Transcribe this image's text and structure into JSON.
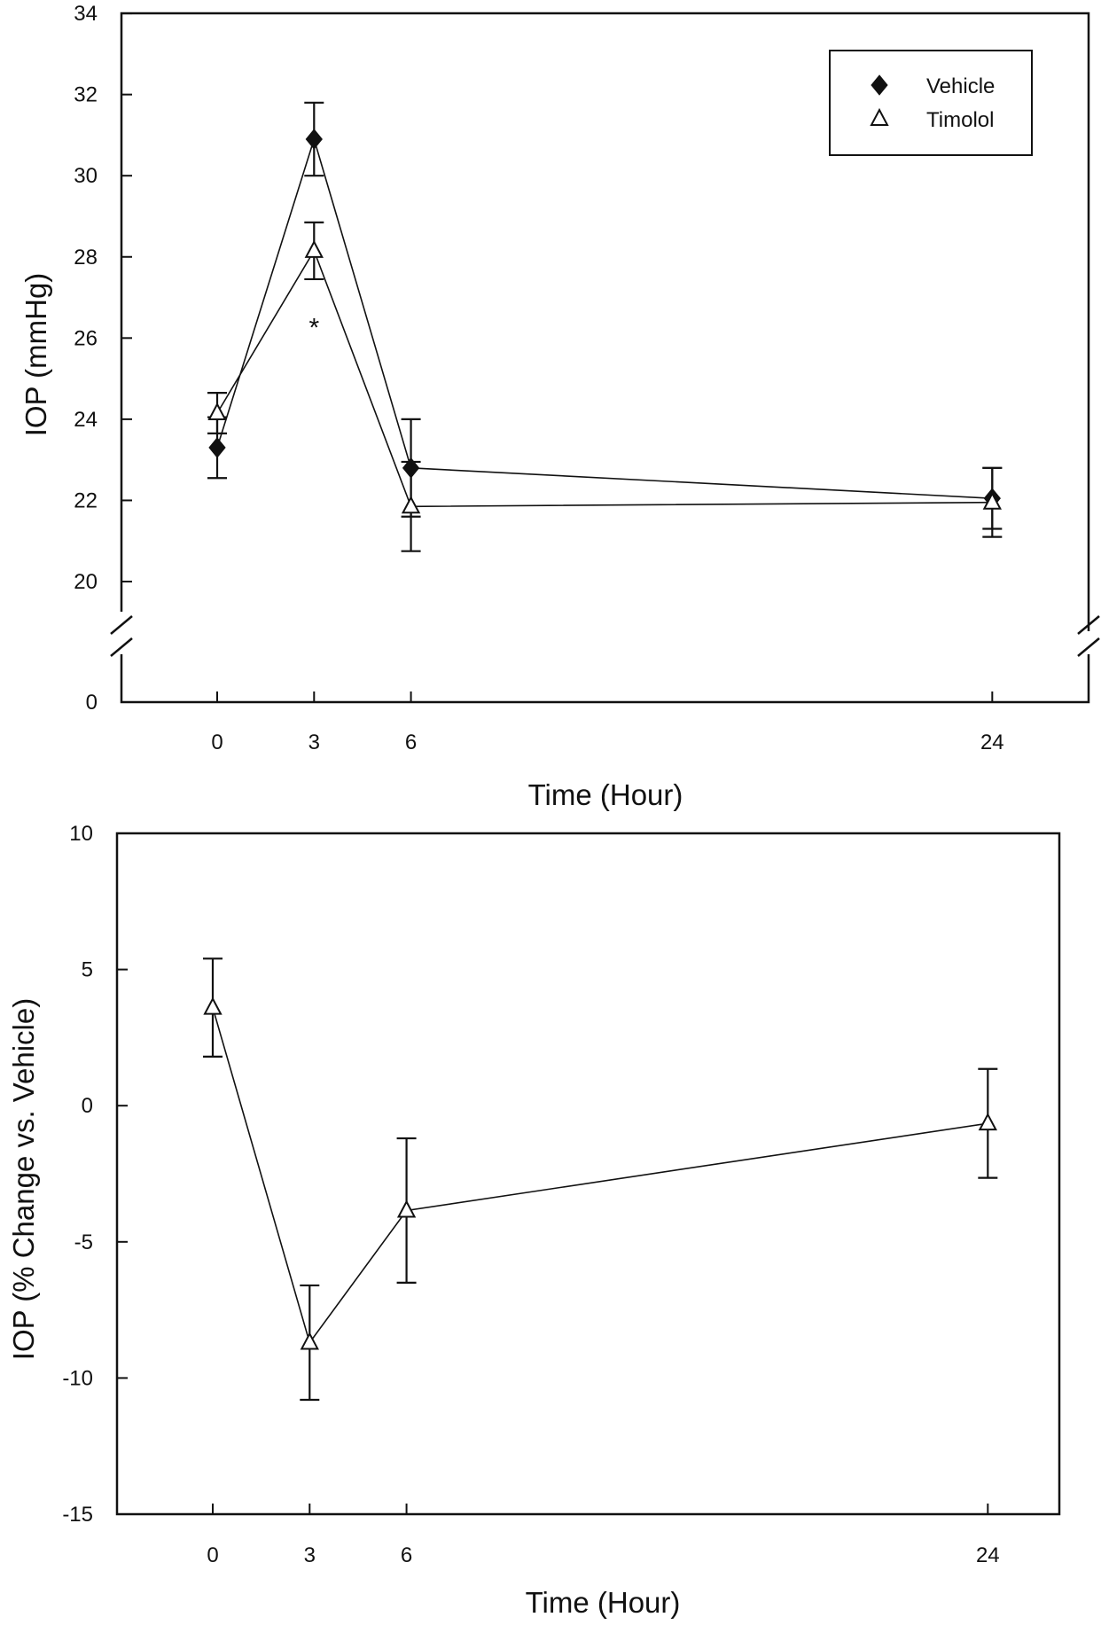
{
  "chart_data": [
    {
      "type": "line",
      "ylabel": "IOP (mmHg)",
      "xlabel": "Time (Hour)",
      "x_ticks": [
        "0",
        "3",
        "6",
        "24"
      ],
      "y_ticks": [
        "0",
        "20",
        "22",
        "24",
        "26",
        "28",
        "30",
        "32",
        "34"
      ],
      "ylim_upper": [
        20,
        34
      ],
      "axis_break_between": [
        0,
        20
      ],
      "legend_position": "top-right",
      "series": [
        {
          "name": "Vehicle",
          "marker": "diamond-filled",
          "x": [
            0,
            3,
            6,
            24
          ],
          "y": [
            23.3,
            30.9,
            22.8,
            22.05
          ],
          "err": [
            0.75,
            0.9,
            1.2,
            0.75
          ]
        },
        {
          "name": "Timolol",
          "marker": "triangle-open",
          "x": [
            0,
            3,
            6,
            24
          ],
          "y": [
            24.15,
            28.15,
            21.85,
            21.95
          ],
          "err": [
            0.5,
            0.7,
            1.1,
            0.85
          ]
        }
      ],
      "annotations": [
        {
          "text": "*",
          "x": 3,
          "y": 26.3
        }
      ]
    },
    {
      "type": "line",
      "ylabel": "IOP (% Change vs. Vehicle)",
      "xlabel": "Time (Hour)",
      "x_ticks": [
        "0",
        "3",
        "6",
        "24"
      ],
      "y_ticks": [
        "-15",
        "-10",
        "-5",
        "0",
        "5",
        "10"
      ],
      "ylim": [
        -15,
        10
      ],
      "series": [
        {
          "name": "Timolol",
          "marker": "triangle-open",
          "x": [
            0,
            3,
            6,
            24
          ],
          "y": [
            3.6,
            -8.7,
            -3.85,
            -0.65
          ],
          "err": [
            1.8,
            2.1,
            2.65,
            2.0
          ]
        }
      ]
    }
  ]
}
